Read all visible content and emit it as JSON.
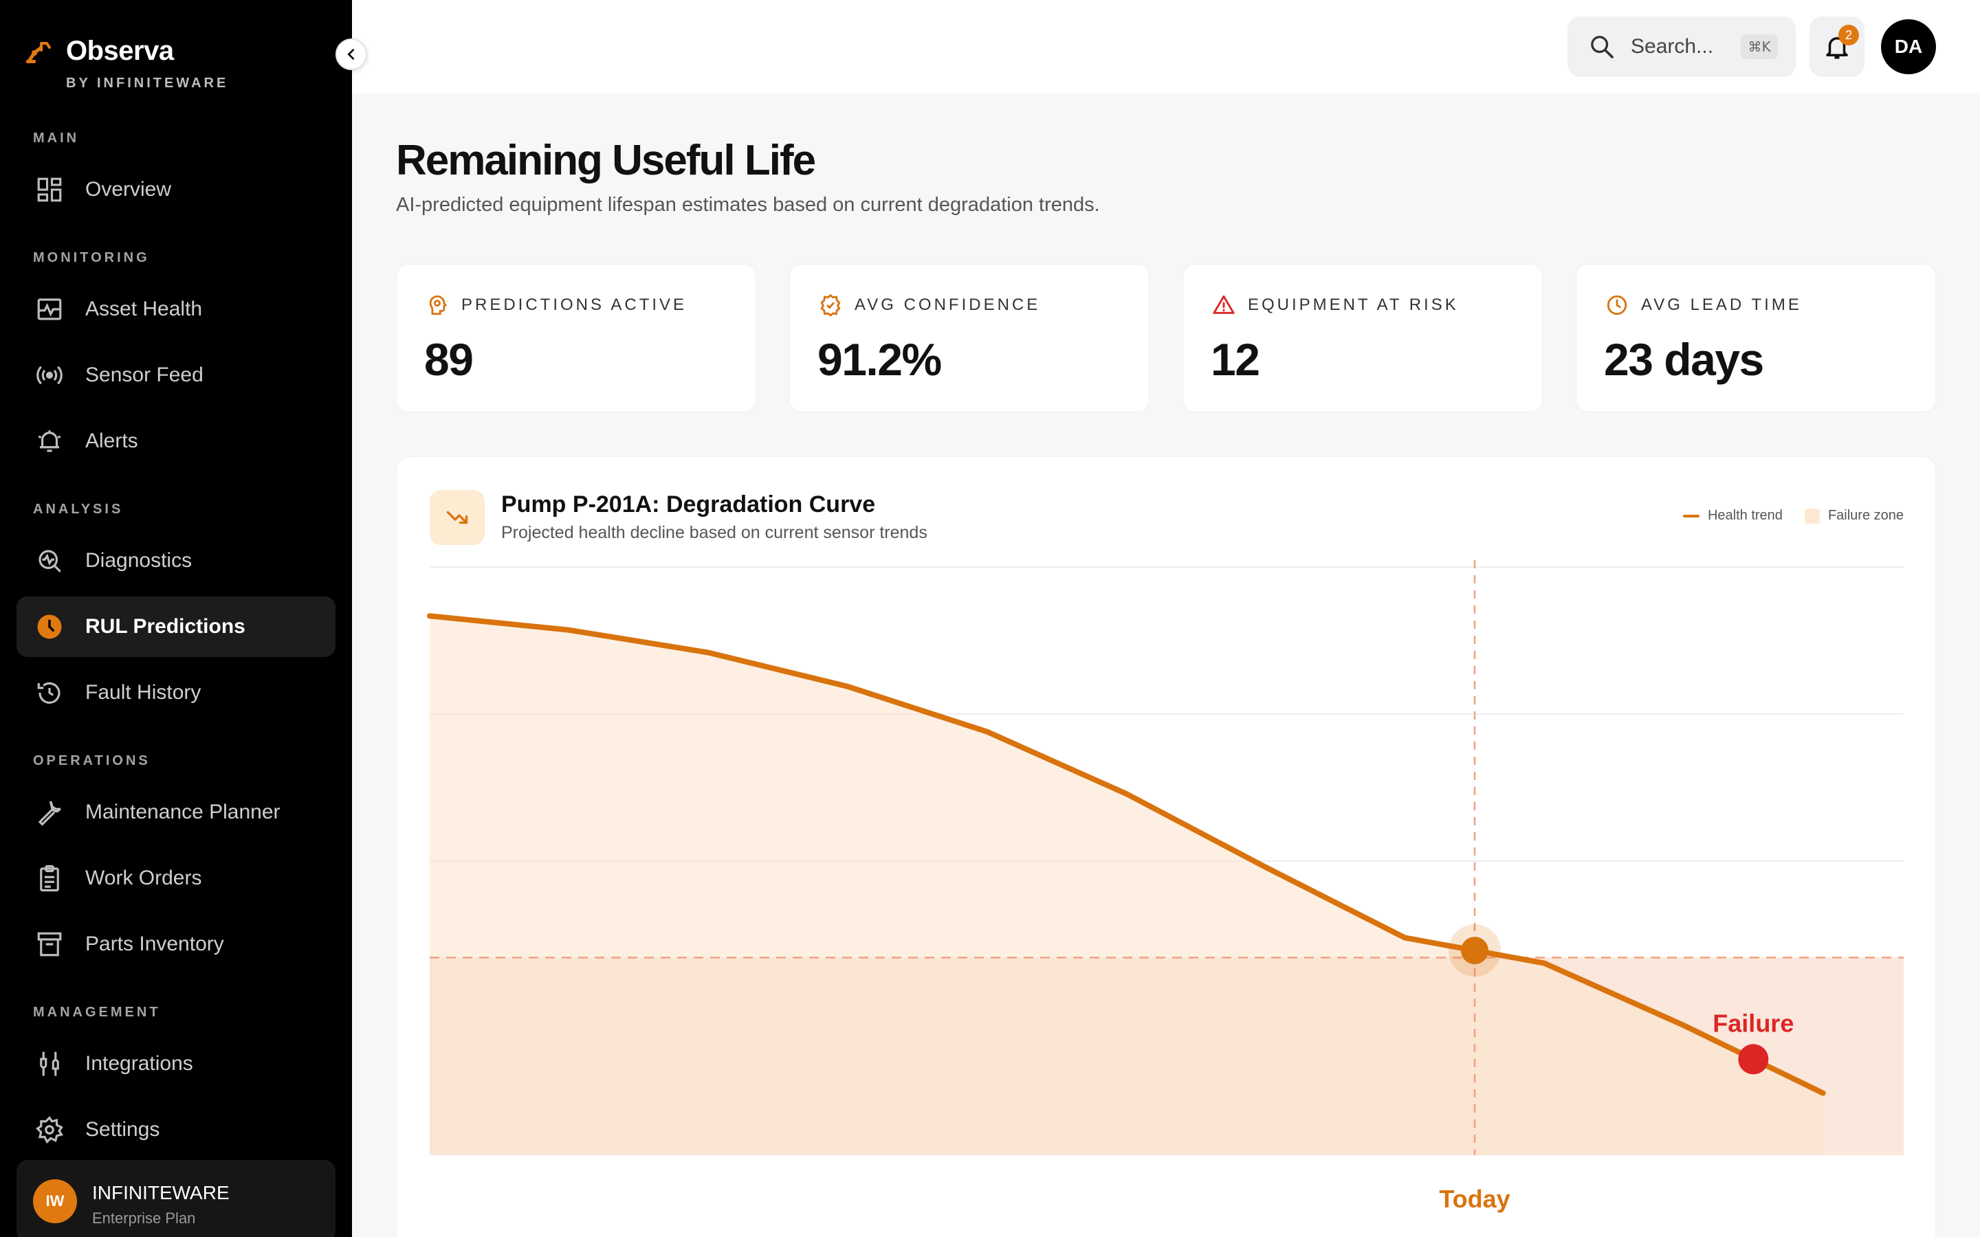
{
  "app": {
    "name": "Observa",
    "byline": "BY INFINITEWARE"
  },
  "sidebar": {
    "sections": [
      {
        "label": "MAIN",
        "items": [
          {
            "label": "Overview",
            "icon": "dashboard-icon"
          }
        ]
      },
      {
        "label": "MONITORING",
        "items": [
          {
            "label": "Asset Health",
            "icon": "pulse-icon"
          },
          {
            "label": "Sensor Feed",
            "icon": "broadcast-icon"
          },
          {
            "label": "Alerts",
            "icon": "bell-ring-icon"
          }
        ]
      },
      {
        "label": "ANALYSIS",
        "items": [
          {
            "label": "Diagnostics",
            "icon": "diagnostics-icon"
          },
          {
            "label": "RUL Predictions",
            "icon": "clock-icon",
            "active": true
          },
          {
            "label": "Fault History",
            "icon": "history-icon"
          }
        ]
      },
      {
        "label": "OPERATIONS",
        "items": [
          {
            "label": "Maintenance Planner",
            "icon": "wrench-icon"
          },
          {
            "label": "Work Orders",
            "icon": "clipboard-icon"
          },
          {
            "label": "Parts Inventory",
            "icon": "archive-icon"
          }
        ]
      },
      {
        "label": "MANAGEMENT",
        "items": [
          {
            "label": "Integrations",
            "icon": "plug-icon"
          },
          {
            "label": "Settings",
            "icon": "gear-icon"
          }
        ]
      }
    ],
    "org": {
      "initials": "IW",
      "name": "INFINITEWARE",
      "plan": "Enterprise Plan"
    }
  },
  "topbar": {
    "search_placeholder": "Search...",
    "search_shortcut": "⌘K",
    "notification_count": "2",
    "user_initials": "DA"
  },
  "page": {
    "title": "Remaining Useful Life",
    "subtitle": "AI-predicted equipment lifespan estimates based on current degradation trends."
  },
  "stats": [
    {
      "label": "PREDICTIONS ACTIVE",
      "value": "89",
      "icon": "brain-icon"
    },
    {
      "label": "AVG CONFIDENCE",
      "value": "91.2%",
      "icon": "badge-check-icon"
    },
    {
      "label": "EQUIPMENT AT RISK",
      "value": "12",
      "icon": "warning-icon"
    },
    {
      "label": "AVG LEAD TIME",
      "value": "23 days",
      "icon": "clock-icon"
    }
  ],
  "chart": {
    "title": "Pump P-201A: Degradation Curve",
    "subtitle": "Projected health decline based on current sensor trends",
    "legend": {
      "health": "Health trend",
      "failure": "Failure zone"
    },
    "markers": {
      "today": "Today",
      "failure": "Failure"
    },
    "colors": {
      "line": "#d9730d",
      "failure_point": "#dc2626",
      "failure_zone": "#fbe7dc"
    }
  },
  "chart_data": {
    "type": "line",
    "title": "Pump P-201A: Degradation Curve",
    "xlabel": "",
    "ylabel": "",
    "x": [
      0,
      1,
      2,
      3,
      4,
      5,
      6,
      7,
      8,
      9,
      10
    ],
    "series": [
      {
        "name": "Health trend",
        "values": [
          95.5,
          93,
          89,
          83,
          75,
          64,
          51,
          38.5,
          34,
          23,
          11
        ]
      }
    ],
    "ylim": [
      0,
      100
    ],
    "failure_threshold": 35,
    "today_index": 7.5,
    "failure_index": 9.5,
    "grid": true
  }
}
